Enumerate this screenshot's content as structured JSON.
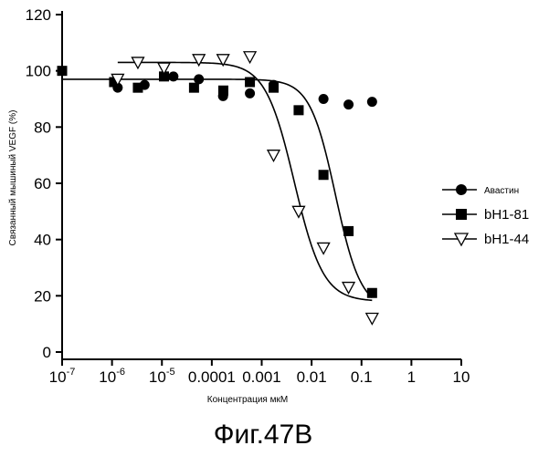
{
  "caption": "Фиг.47B",
  "chart_data": {
    "type": "scatter",
    "xlabel": "Концентрация мкМ",
    "ylabel": "Связанный мышиный VEGF (%)",
    "xscale": "log",
    "xlim": [
      1e-07,
      10
    ],
    "ylim": [
      0,
      120
    ],
    "grid": false,
    "legend_position": "right",
    "x_ticks": [
      {
        "base": "10",
        "exp": "-7"
      },
      {
        "base": "10",
        "exp": "-6"
      },
      {
        "base": "10",
        "exp": "-5"
      },
      {
        "base": "0.0001",
        "exp": ""
      },
      {
        "base": "0.001",
        "exp": ""
      },
      {
        "base": "0.01",
        "exp": ""
      },
      {
        "base": "0.1",
        "exp": ""
      },
      {
        "base": "1",
        "exp": ""
      },
      {
        "base": "10",
        "exp": ""
      }
    ],
    "y_ticks": [
      "0",
      "20",
      "40",
      "60",
      "80",
      "100",
      "120"
    ],
    "series": [
      {
        "name": "Авастин",
        "marker": "circle",
        "x": [
          1.3e-06,
          4.5e-06,
          1.7e-05,
          5.5e-05,
          0.000168,
          0.00058,
          0.00173,
          0.0173,
          0.055,
          0.163
        ],
        "y": [
          94,
          95,
          98,
          97,
          91,
          92,
          95,
          90,
          88,
          89
        ]
      },
      {
        "name": "bH1-81",
        "marker": "square",
        "x": [
          1e-07,
          1.1e-06,
          3.3e-06,
          1.1e-05,
          4.4e-05,
          0.00017,
          0.00058,
          0.00173,
          0.0055,
          0.0173,
          0.055,
          0.163
        ],
        "y": [
          100,
          96,
          94,
          98,
          94,
          93,
          96,
          94,
          86,
          63,
          43,
          21
        ],
        "fit": {
          "top": 97,
          "bottom": 15,
          "ic50": 0.03,
          "hill": 1.7
        }
      },
      {
        "name": "bH1-44",
        "marker": "triangle-down",
        "x": [
          1.3e-06,
          3.3e-06,
          1.1e-05,
          5.5e-05,
          0.000168,
          0.00058,
          0.00173,
          0.0055,
          0.0173,
          0.055,
          0.163
        ],
        "y": [
          97,
          103,
          101,
          104,
          104,
          105,
          70,
          50,
          37,
          23,
          12
        ],
        "fit": {
          "top": 103,
          "bottom": 18,
          "ic50": 0.0045,
          "hill": 1.5
        }
      }
    ]
  }
}
